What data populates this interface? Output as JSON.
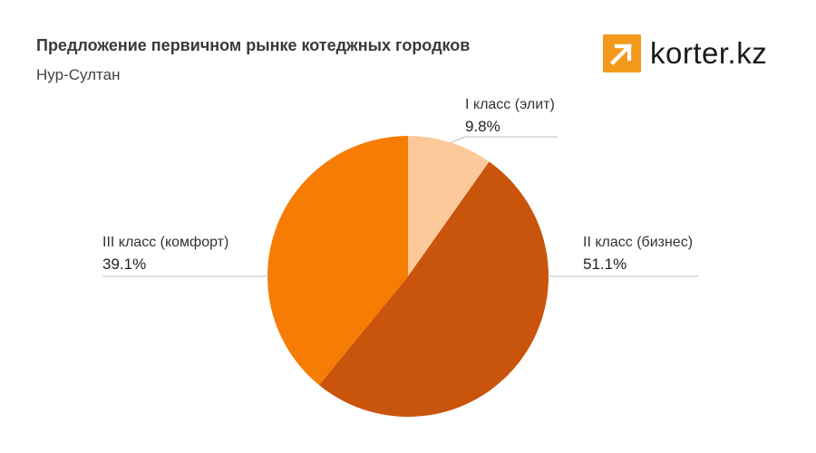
{
  "brand": {
    "name": "korter.kz",
    "icon": "arrow-up-right-icon",
    "color": "#f39a1d"
  },
  "chart_data": {
    "type": "pie",
    "title": "Предложение первичном рынке котеджных городков",
    "subtitle": "Нур-Султан",
    "legend": "none",
    "slices": [
      {
        "name": "I класс (элит)",
        "label": "9.8%",
        "value": 9.8,
        "color": "#fdc99b"
      },
      {
        "name": "II класс (бизнес)",
        "label": "51.1%",
        "value": 51.1,
        "color": "#c9540c"
      },
      {
        "name": "III класс (комфорт)",
        "label": "39.1%",
        "value": 39.1,
        "color": "#f67c03"
      }
    ]
  }
}
